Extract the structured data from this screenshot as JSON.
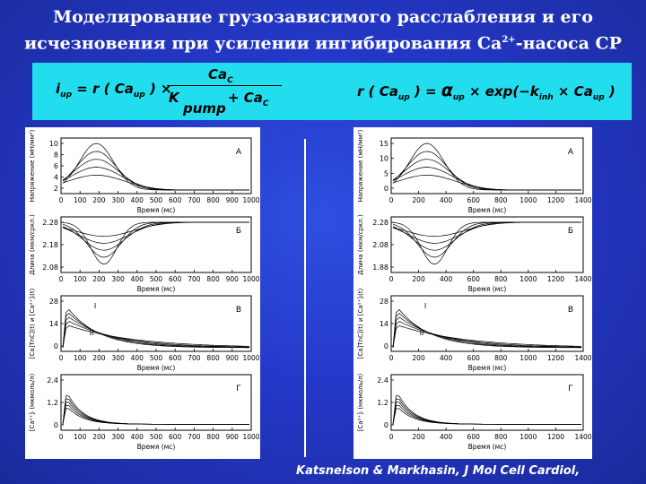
{
  "title": {
    "line1": "Моделирование грузозависимого расслабления и его",
    "line2_prefix": "исчезновения  при усилении ингибирования Ca",
    "line2_sup": "2+",
    "line2_suffix": "-насоса СР"
  },
  "formula_left": {
    "lhs": "i",
    "lhs_sub": "up",
    "eq": "= r ( Ca",
    "eq_sub": "up",
    "eq_tail": ") ×",
    "num": "Ca",
    "num_sub": "C",
    "den_K": "K",
    "den_pump": "pump",
    "den_plus": "+ Ca",
    "den_sub": "C"
  },
  "formula_right": {
    "lhs": "r ( Ca",
    "lhs_sub": "up",
    "lhs_tail": ") =",
    "alpha": "α",
    "alpha_sub": "up",
    "exp": "× exp(",
    "minus_k": "−k",
    "k_sub": "inh",
    "times": "× Ca",
    "ca_sub": "up",
    "close": ")"
  },
  "left_figure": {
    "time_label": "Время (мс)",
    "x_ticks": [
      "0",
      "100",
      "200",
      "300",
      "400",
      "500",
      "600",
      "700",
      "800",
      "900",
      "1000"
    ],
    "panels": [
      {
        "letter": "А",
        "ylabel": "Напряжение (мН/мм²)",
        "yticks": [
          "10",
          "8",
          "6",
          "4",
          "2"
        ]
      },
      {
        "letter": "Б",
        "ylabel": "Длина (мкм/сркл.)",
        "yticks": [
          "2.28",
          "2.18",
          "2.08"
        ]
      },
      {
        "letter": "В",
        "ylabel": "[Ca]TnC](t) и [Ca²⁺]ᵢ(t)",
        "yticks": [
          "28",
          "14",
          "0"
        ],
        "curve_labels": [
          "I",
          "II"
        ]
      },
      {
        "letter": "Г",
        "ylabel": "[Ca²⁺]ᵢ (мкмоль/л)",
        "yticks": [
          "2.4",
          "1.2",
          "0"
        ]
      }
    ]
  },
  "right_figure": {
    "time_label": "Время (мс)",
    "x_ticks": [
      "0",
      "200",
      "400",
      "600",
      "800",
      "1000",
      "1200",
      "1400"
    ],
    "panels": [
      {
        "letter": "А",
        "ylabel": "Напряжение (мН/мм²)",
        "yticks": [
          "15",
          "10",
          "5",
          "0"
        ]
      },
      {
        "letter": "Б",
        "ylabel": "Длина (мкм/сркл.)",
        "yticks": [
          "2.28",
          "2.08",
          "1.88"
        ]
      },
      {
        "letter": "В",
        "ylabel": "[Ca]TnC](t) и [Ca²⁺]ᵢ(t)",
        "yticks": [
          "28",
          "14",
          "0"
        ],
        "curve_labels": [
          "I",
          "II"
        ]
      },
      {
        "letter": "Г",
        "ylabel": "[Ca²⁺]ᵢ (мкмоль/л)",
        "yticks": [
          "2.4",
          "1.2",
          "0"
        ]
      }
    ]
  },
  "citation": "Katsnelson & Markhasin, J Mol Cell Cardiol,"
}
